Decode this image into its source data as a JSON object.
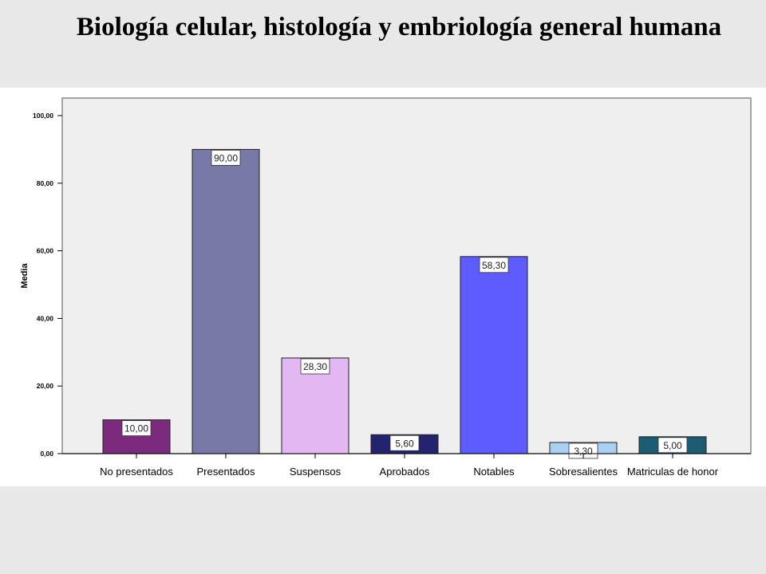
{
  "title": "Biología celular, histología y embriología general humana",
  "chart_data": {
    "type": "bar",
    "title": "Biología celular, histología y embriología general humana",
    "xlabel": "",
    "ylabel": "Media",
    "ylim": [
      0,
      100
    ],
    "yticks": [
      "0,00",
      "20,00",
      "40,00",
      "60,00",
      "80,00",
      "100,00"
    ],
    "categories": [
      "No presentados",
      "Presentados",
      "Suspensos",
      "Aprobados",
      "Notables",
      "Sobresalientes",
      "Matriculas de honor"
    ],
    "values": [
      10.0,
      90.0,
      28.3,
      5.6,
      58.3,
      3.3,
      5.0
    ],
    "value_labels": [
      "10,00",
      "90,00",
      "28,30",
      "5,60",
      "58,30",
      "3,30",
      "5,00"
    ],
    "colors": [
      "#7b2a7e",
      "#7878a8",
      "#e2b8f2",
      "#23236f",
      "#5c5cff",
      "#a9cff2",
      "#1b5c73"
    ],
    "grid": false,
    "plot_background": "#efefef"
  }
}
